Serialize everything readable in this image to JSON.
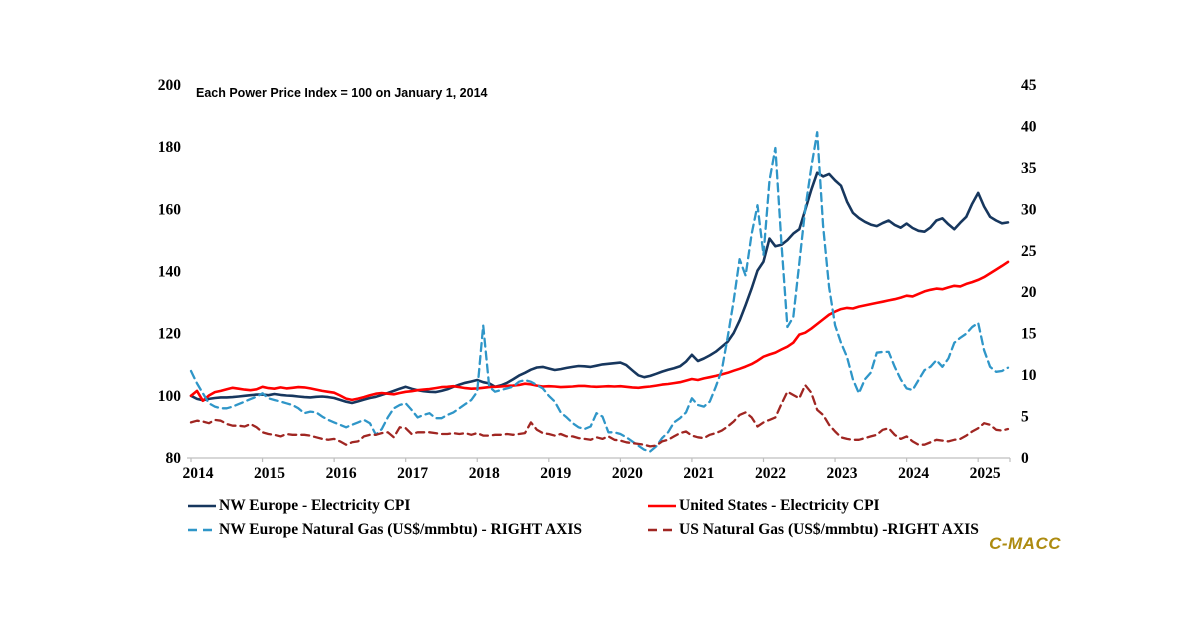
{
  "page": {
    "background": "#ffffff"
  },
  "annotation": "Each Power Price Index = 100 on January 1, 2014",
  "logo": {
    "text": "C-MACC",
    "color": "#AD8B10"
  },
  "axis_color": "#BFBFBF",
  "legend": [
    {
      "label": "NW Europe - Electricity CPI",
      "color": "#17375E",
      "dash": "none"
    },
    {
      "label": "United States - Electricity CPI",
      "color": "#FF0000",
      "dash": "none"
    },
    {
      "label": "NW Europe Natural Gas (US$/mmbtu) - RIGHT AXIS",
      "color": "#2F96C8",
      "dash": "8 5"
    },
    {
      "label": "US Natural Gas (US$/mmbtu) -RIGHT AXIS",
      "color": "#A02622",
      "dash": "8 5"
    }
  ],
  "chart_data": {
    "type": "line",
    "title": "",
    "note": "Each Power Price Index = 100 on January 1, 2014",
    "x_unit": "month",
    "x_start": "2014-01",
    "x_end": "2025-06",
    "year_labels": [
      "2014",
      "2015",
      "2016",
      "2017",
      "2018",
      "2019",
      "2020",
      "2021",
      "2022",
      "2023",
      "2024",
      "2025"
    ],
    "left_axis": {
      "ticks": [
        "200",
        "180",
        "160",
        "140",
        "120",
        "100",
        "80"
      ],
      "range": [
        80,
        200
      ],
      "grid": false
    },
    "right_axis": {
      "ticks": [
        "45",
        "40",
        "35",
        "30",
        "25",
        "20",
        "15",
        "10",
        "5",
        "0"
      ],
      "range": [
        0,
        45
      ],
      "grid": false
    },
    "legend_position": "bottom",
    "series": [
      {
        "name": "NW Europe - Electricity CPI",
        "axis": "left",
        "color": "#17375E",
        "dash": "none",
        "width": 2.6,
        "values": [
          100,
          99,
          98.6,
          99,
          99.3,
          99.5,
          99.5,
          99.6,
          99.8,
          100,
          100.2,
          100.4,
          100.4,
          100.2,
          100.6,
          100.3,
          100.1,
          100,
          99.8,
          99.6,
          99.5,
          99.7,
          99.8,
          99.6,
          99.3,
          98.7,
          98.1,
          97.7,
          98.2,
          98.8,
          99.3,
          99.7,
          100.3,
          100.9,
          101.6,
          102.3,
          102.9,
          102.3,
          101.8,
          101.5,
          101.3,
          101.2,
          101.6,
          102.1,
          102.9,
          103.6,
          104.2,
          104.6,
          105.1,
          104.4,
          104,
          102.9,
          103.4,
          104.2,
          105.3,
          106.5,
          107.4,
          108.4,
          109.1,
          109.3,
          108.8,
          108.3,
          108.6,
          109,
          109.3,
          109.6,
          109.5,
          109.3,
          109.7,
          110.1,
          110.3,
          110.5,
          110.7,
          109.9,
          108.2,
          106.6,
          106,
          106.4,
          107.1,
          107.8,
          108.4,
          108.9,
          109.5,
          111,
          113.2,
          111.2,
          112,
          113,
          114.2,
          115.8,
          117.4,
          120.2,
          124.2,
          129.2,
          134.5,
          140.3,
          143.2,
          150.6,
          148.1,
          148.6,
          150.1,
          152.2,
          153.6,
          159.8,
          166.2,
          171.8,
          170.6,
          171.4,
          169.3,
          167.6,
          162.5,
          158.9,
          157.2,
          156,
          155.1,
          154.6,
          155.6,
          156.4,
          155,
          154.1,
          155.4,
          154,
          153.1,
          152.8,
          154.2,
          156.4,
          157.1,
          155.2,
          153.6,
          155.7,
          157.6,
          161.8,
          165.3,
          160.9,
          157.6,
          156.4,
          155.5,
          155.8
        ]
      },
      {
        "name": "United States - Electricity CPI",
        "axis": "left",
        "color": "#FF0000",
        "dash": "none",
        "width": 2.6,
        "values": [
          100,
          101.6,
          98.4,
          100.1,
          101.2,
          101.6,
          102.1,
          102.6,
          102.3,
          102,
          101.8,
          102.1,
          102.9,
          102.5,
          102.3,
          102.7,
          102.4,
          102.6,
          102.8,
          102.7,
          102.4,
          102,
          101.6,
          101.3,
          101,
          100.1,
          99.1,
          98.7,
          99.1,
          99.6,
          100.2,
          100.7,
          100.9,
          100.7,
          100.5,
          100.9,
          101.3,
          101.5,
          101.8,
          102,
          102.2,
          102.5,
          102.8,
          102.9,
          103.1,
          102.8,
          102.5,
          102.3,
          102.4,
          102.6,
          102.8,
          102.9,
          103,
          103.2,
          103.3,
          103.5,
          103.9,
          103.7,
          103.3,
          103,
          103.1,
          103,
          102.8,
          102.9,
          103,
          103.2,
          103.2,
          103,
          102.9,
          103,
          103.1,
          103,
          103.1,
          102.9,
          102.7,
          102.6,
          102.8,
          103,
          103.3,
          103.6,
          103.8,
          104.1,
          104.4,
          104.9,
          105.4,
          105.1,
          105.6,
          106,
          106.4,
          106.9,
          107.4,
          108.1,
          108.7,
          109.4,
          110.2,
          111.3,
          112.6,
          113.3,
          113.9,
          114.9,
          115.8,
          117.1,
          119.7,
          120.3,
          121.6,
          123.1,
          124.6,
          126.1,
          127.1,
          127.9,
          128.3,
          128.1,
          128.7,
          129.1,
          129.5,
          129.9,
          130.3,
          130.7,
          131.1,
          131.6,
          132.2,
          132,
          132.8,
          133.6,
          134.1,
          134.5,
          134.3,
          134.9,
          135.4,
          135.2,
          136,
          136.6,
          137.3,
          138.2,
          139.4,
          140.6,
          141.8,
          143.1
        ]
      },
      {
        "name": "NW Europe Natural Gas (US$/mmbtu) - RIGHT AXIS",
        "axis": "right",
        "color": "#2F96C8",
        "dash": "8 5",
        "width": 2.3,
        "values": [
          10.5,
          9,
          7.8,
          6.6,
          6.2,
          6,
          6,
          6.2,
          6.5,
          6.8,
          7.1,
          7.4,
          7.8,
          7.2,
          7,
          6.8,
          6.6,
          6.4,
          6,
          5.4,
          5.6,
          5.5,
          5,
          4.6,
          4.3,
          4,
          3.7,
          4,
          4.3,
          4.6,
          4.2,
          2.8,
          3.5,
          4.9,
          6,
          6.4,
          6.6,
          5.8,
          4.9,
          5.2,
          5.4,
          4.8,
          4.8,
          5.2,
          5.5,
          6,
          6.5,
          7,
          8,
          16,
          8.6,
          8,
          8.2,
          8.4,
          8.6,
          9.2,
          9.4,
          9.2,
          8.8,
          8.4,
          7.5,
          6.8,
          5.5,
          4.9,
          4.2,
          3.7,
          3.5,
          3.8,
          5.4,
          5,
          3.1,
          3.1,
          2.9,
          2.5,
          2,
          1.5,
          1,
          0.8,
          1.4,
          2.4,
          3.1,
          4.3,
          4.8,
          5.5,
          7.2,
          6.4,
          6.2,
          6.8,
          8.6,
          10.6,
          14.6,
          19,
          24,
          22,
          27,
          30.5,
          24.5,
          33.5,
          37.4,
          26,
          15.8,
          17,
          23.5,
          30,
          35,
          39.3,
          28,
          20.6,
          16,
          13.9,
          12.2,
          9.5,
          7.8,
          9.5,
          10.3,
          12.7,
          12.8,
          12.8,
          11,
          9.5,
          8.4,
          8.2,
          9.4,
          10.6,
          11,
          11.8,
          11,
          12,
          13.9,
          14.5,
          15,
          15.8,
          16.3,
          13,
          11,
          10.4,
          10.5,
          10.9
        ]
      },
      {
        "name": "US Natural Gas (US$/mmbtu) -RIGHT AXIS",
        "axis": "right",
        "color": "#A02622",
        "dash": "8 5",
        "width": 2.3,
        "values": [
          4.3,
          4.5,
          4.4,
          4.2,
          4.6,
          4.5,
          4.1,
          3.9,
          3.9,
          3.8,
          4.1,
          3.7,
          3.1,
          2.9,
          2.8,
          2.6,
          2.9,
          2.8,
          2.8,
          2.8,
          2.7,
          2.5,
          2.3,
          2.2,
          2.3,
          2,
          1.6,
          1.9,
          2,
          2.6,
          2.8,
          2.8,
          3,
          3.1,
          2.5,
          3.7,
          3.6,
          2.9,
          3.1,
          3.1,
          3.1,
          3,
          2.9,
          2.9,
          3,
          2.9,
          3,
          2.8,
          3,
          2.7,
          2.7,
          2.8,
          2.8,
          2.9,
          2.8,
          2.9,
          3,
          4.3,
          3.4,
          3,
          2.9,
          2.7,
          2.9,
          2.6,
          2.6,
          2.4,
          2.3,
          2.2,
          2.5,
          2.3,
          2.6,
          2.2,
          2.1,
          1.9,
          1.8,
          1.7,
          1.6,
          1.4,
          1.5,
          2,
          2.2,
          2.6,
          3,
          3.2,
          2.7,
          2.5,
          2.4,
          2.8,
          3,
          3.3,
          3.8,
          4.4,
          5.2,
          5.5,
          4.9,
          3.8,
          4.3,
          4.6,
          4.9,
          6.5,
          8,
          7.6,
          7.2,
          8.8,
          7.9,
          5.8,
          5.2,
          4,
          3.2,
          2.5,
          2.3,
          2.2,
          2.2,
          2.4,
          2.6,
          2.8,
          3.4,
          3.6,
          2.8,
          2.3,
          2.6,
          2,
          1.6,
          1.6,
          1.9,
          2.2,
          2.1,
          2,
          2.2,
          2.3,
          2.7,
          3.2,
          3.6,
          4.2,
          4,
          3.4,
          3.3,
          3.5
        ]
      }
    ]
  }
}
